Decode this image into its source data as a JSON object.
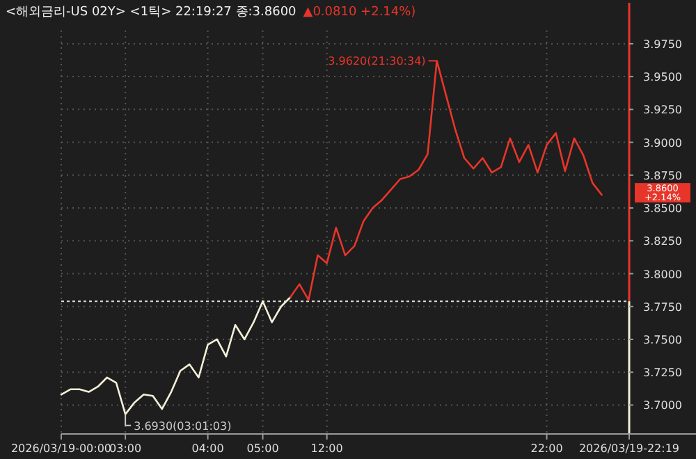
{
  "chart_data": {
    "type": "line",
    "title": "<해외금리-US 02Y> <1틱> 22:19:27 종:3.8600",
    "subtitle": "▲0.0810 +2.14%)",
    "categories": [
      "2026/03/19-00:00",
      null,
      null,
      null,
      null,
      null,
      null,
      "03:00",
      null,
      null,
      null,
      null,
      null,
      null,
      null,
      null,
      "04:00",
      null,
      null,
      null,
      null,
      null,
      "05:00",
      null,
      null,
      null,
      null,
      null,
      null,
      "12:00",
      null,
      null,
      null,
      null,
      null,
      null,
      null,
      null,
      null,
      null,
      null,
      null,
      null,
      null,
      null,
      null,
      null,
      null,
      null,
      null,
      null,
      null,
      null,
      "22:00",
      null,
      null,
      null,
      null,
      null,
      null,
      null,
      null,
      "2026/03/19-22:19"
    ],
    "ylim": [
      3.678,
      3.985
    ],
    "yticks": [
      {
        "value": 3.7,
        "label": "3.7000"
      },
      {
        "value": 3.725,
        "label": "3.7250"
      },
      {
        "value": 3.75,
        "label": "3.7500"
      },
      {
        "value": 3.775,
        "label": "3.7750"
      },
      {
        "value": 3.8,
        "label": "3.8000"
      },
      {
        "value": 3.825,
        "label": "3.8250"
      },
      {
        "value": 3.85,
        "label": "3.8500"
      },
      {
        "value": 3.875,
        "label": "3.8750"
      },
      {
        "value": 3.9,
        "label": "3.9000"
      },
      {
        "value": 3.925,
        "label": "3.9250"
      },
      {
        "value": 3.95,
        "label": "3.9500"
      },
      {
        "value": 3.975,
        "label": "3.9750"
      }
    ],
    "grid": true,
    "marker": "none",
    "line_style": "solid",
    "series": [
      {
        "color": "#f4f0d8",
        "values": [
          3.708,
          3.712,
          3.712,
          3.71,
          3.714,
          3.721,
          3.717,
          3.693,
          3.702,
          3.708,
          3.707,
          3.697,
          3.71,
          3.726,
          3.731,
          3.721,
          3.746,
          3.75,
          3.737,
          3.761,
          3.75,
          3.763,
          3.779,
          3.763,
          3.775,
          3.782,
          null,
          null,
          null,
          null,
          null,
          null,
          null,
          null,
          null,
          null,
          null,
          null,
          null,
          null,
          null,
          null,
          null,
          null,
          null,
          null,
          null,
          null,
          null,
          null,
          null,
          null,
          null,
          null,
          null,
          null,
          null,
          null,
          null,
          null,
          null,
          null,
          null
        ]
      },
      {
        "color": "#e8352a",
        "values": [
          null,
          null,
          null,
          null,
          null,
          null,
          null,
          null,
          null,
          null,
          null,
          null,
          null,
          null,
          null,
          null,
          null,
          null,
          null,
          null,
          null,
          null,
          null,
          null,
          null,
          3.782,
          3.792,
          3.78,
          3.814,
          3.808,
          3.835,
          3.814,
          3.821,
          3.84,
          3.85,
          3.856,
          3.864,
          3.872,
          3.874,
          3.879,
          3.891,
          3.962,
          3.936,
          3.91,
          3.888,
          3.88,
          3.888,
          3.877,
          3.881,
          3.903,
          3.885,
          3.898,
          3.877,
          3.898,
          3.907,
          3.878,
          3.903,
          3.89,
          3.869,
          3.86,
          null,
          null,
          null
        ]
      }
    ],
    "ref_lines": [
      {
        "axis": "y",
        "value": 3.779,
        "color": "#dddddd",
        "line_style": "dotted"
      }
    ],
    "annotations": [
      "3.9620(21:30:34)",
      "3.6930(03:01:03)",
      "3.8600 +2.14%"
    ]
  }
}
